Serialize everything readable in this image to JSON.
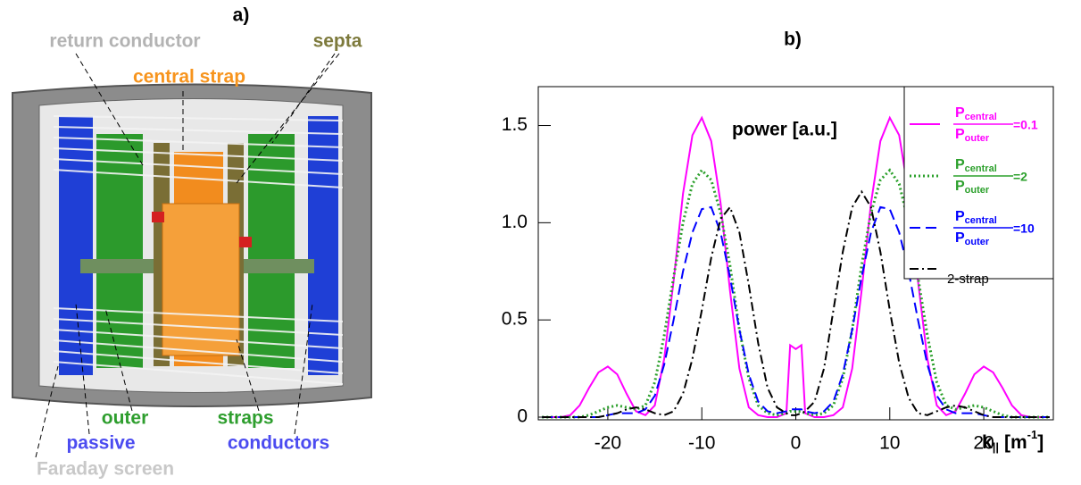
{
  "panel_a": {
    "label": "a)",
    "annotations": [
      {
        "text": "return conductor",
        "color": "#b3b3b3"
      },
      {
        "text": "central strap",
        "color": "#f7941d"
      },
      {
        "text": "septa",
        "color": "#7d7a3c"
      },
      {
        "text": "outer",
        "color": "#2e9e2e"
      },
      {
        "text": "straps",
        "color": "#2e9e2e"
      },
      {
        "text": "passive",
        "color": "#4b4bf0"
      },
      {
        "text": "conductors",
        "color": "#4b4bf0"
      },
      {
        "text": "Faraday screen",
        "color": "#c8c8c8"
      }
    ]
  },
  "chart_data": {
    "type": "line",
    "panel_label": "b)",
    "annotation": "power [a.u.]",
    "xlabel": {
      "base": "k",
      "sub": "||",
      "unit": "[m",
      "sup": "-1",
      "end": "]"
    },
    "x": [
      -27,
      -26,
      -25,
      -24,
      -23,
      -22,
      -21,
      -20,
      -19,
      -18,
      -17,
      -16,
      -15,
      -14,
      -13,
      -12,
      -11,
      -10,
      -9,
      -8,
      -7,
      -6,
      -5,
      -4,
      -3,
      -2,
      -1,
      -0.6,
      0,
      0.6,
      1,
      2,
      3,
      4,
      5,
      6,
      7,
      8,
      9,
      10,
      11,
      12,
      13,
      14,
      15,
      16,
      17,
      18,
      19,
      20,
      21,
      22,
      23,
      24,
      25,
      26,
      27
    ],
    "series": [
      {
        "name": "=0.1",
        "fraction": {
          "top": "P",
          "top_sub": "central",
          "bottom": "P",
          "bottom_sub": "outer"
        },
        "color": "#ff00ff",
        "linestyle": "solid",
        "values": [
          0,
          0,
          0,
          0.01,
          0.06,
          0.15,
          0.23,
          0.26,
          0.22,
          0.12,
          0.03,
          0.01,
          0.06,
          0.3,
          0.7,
          1.15,
          1.45,
          1.54,
          1.42,
          1.1,
          0.65,
          0.25,
          0.05,
          0.01,
          0,
          0,
          0.02,
          0.37,
          0.35,
          0.37,
          0.02,
          0,
          0,
          0.01,
          0.05,
          0.25,
          0.65,
          1.1,
          1.42,
          1.54,
          1.45,
          1.15,
          0.7,
          0.3,
          0.06,
          0.01,
          0.03,
          0.12,
          0.22,
          0.26,
          0.23,
          0.15,
          0.06,
          0.01,
          0,
          0,
          0
        ]
      },
      {
        "name": "=2",
        "fraction": {
          "top": "P",
          "top_sub": "central",
          "bottom": "P",
          "bottom_sub": "outer"
        },
        "color": "#2ca02c",
        "linestyle": "dotted",
        "values": [
          0,
          0,
          0,
          0,
          0,
          0.01,
          0.03,
          0.05,
          0.06,
          0.05,
          0.04,
          0.06,
          0.18,
          0.42,
          0.72,
          1.0,
          1.2,
          1.27,
          1.22,
          1.05,
          0.78,
          0.45,
          0.2,
          0.06,
          0.02,
          0.01,
          0.02,
          0.03,
          0.03,
          0.03,
          0.02,
          0.01,
          0.02,
          0.06,
          0.2,
          0.45,
          0.78,
          1.05,
          1.22,
          1.27,
          1.2,
          1.0,
          0.72,
          0.42,
          0.18,
          0.06,
          0.04,
          0.05,
          0.06,
          0.05,
          0.03,
          0.01,
          0,
          0,
          0,
          0,
          0
        ]
      },
      {
        "name": "=10",
        "fraction": {
          "top": "P",
          "top_sub": "central",
          "bottom": "P",
          "bottom_sub": "outer"
        },
        "color": "#0000ff",
        "linestyle": "dashed",
        "values": [
          0,
          0,
          0,
          0,
          0,
          0,
          0,
          0.01,
          0.02,
          0.02,
          0.02,
          0.04,
          0.11,
          0.27,
          0.5,
          0.75,
          0.95,
          1.07,
          1.08,
          0.95,
          0.72,
          0.45,
          0.22,
          0.08,
          0.03,
          0.02,
          0.03,
          0.04,
          0.04,
          0.04,
          0.03,
          0.02,
          0.03,
          0.08,
          0.22,
          0.45,
          0.72,
          0.95,
          1.08,
          1.07,
          0.95,
          0.75,
          0.5,
          0.27,
          0.11,
          0.04,
          0.02,
          0.02,
          0.02,
          0.01,
          0,
          0,
          0,
          0,
          0,
          0,
          0
        ]
      },
      {
        "name": "2-strap",
        "color": "#000000",
        "linestyle": "dashdot",
        "values": [
          0,
          0,
          0,
          0,
          0,
          0,
          0,
          0.01,
          0.02,
          0.04,
          0.05,
          0.04,
          0.02,
          0.01,
          0.03,
          0.12,
          0.3,
          0.55,
          0.82,
          1.02,
          1.08,
          0.95,
          0.68,
          0.38,
          0.15,
          0.05,
          0.02,
          0.01,
          0.01,
          0.02,
          0.03,
          0.08,
          0.25,
          0.55,
          0.85,
          1.08,
          1.16,
          1.08,
          0.85,
          0.55,
          0.28,
          0.1,
          0.02,
          0.01,
          0.03,
          0.05,
          0.06,
          0.05,
          0.03,
          0.01,
          0,
          0,
          0,
          0,
          0,
          0,
          0
        ]
      }
    ],
    "xlim": [
      -27.4,
      27.4
    ],
    "xticks": [
      -20,
      -10,
      0,
      10,
      20
    ],
    "ylim": [
      0,
      1.7
    ],
    "yticks": [
      0,
      0.5,
      {
        "value": 1,
        "label": "1.0"
      },
      1.5
    ],
    "legend": "upper right",
    "grid": false
  }
}
